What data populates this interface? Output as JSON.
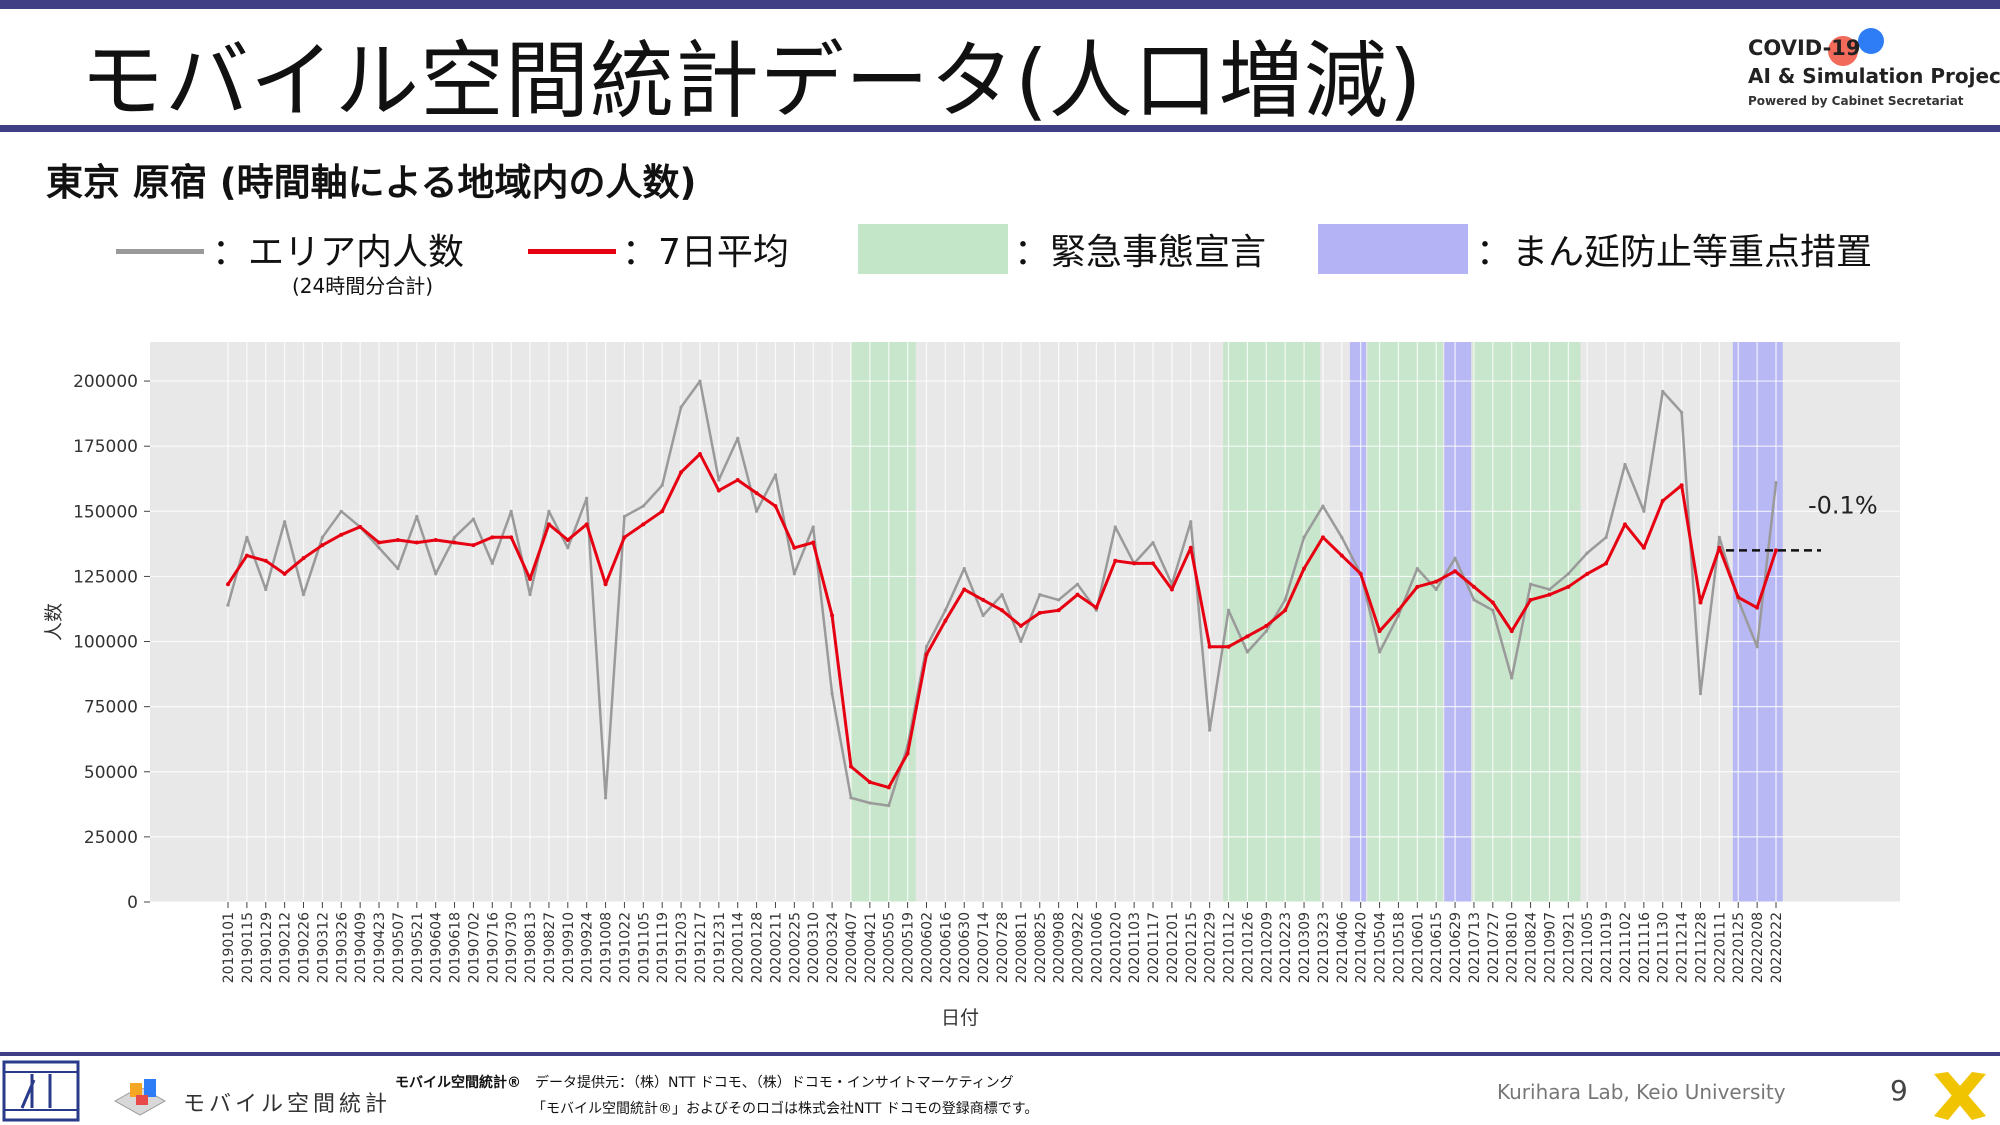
{
  "header": {
    "title": "モバイル空間統計データ(人口増減)",
    "logo_line1": "COVID-19",
    "logo_line2": "AI & Simulation Project",
    "logo_line3": "Powered by Cabinet Secretariat"
  },
  "subtitle": "東京 原宿 (時間軸による地域内の人数)",
  "legend": {
    "raw": "：エリア内人数",
    "raw_note": "(24時間分合計)",
    "avg": "：7日平均",
    "emergency": "：緊急事態宣言",
    "semi": "：まん延防止等重点措置"
  },
  "colors": {
    "raw": "#9a9a9a",
    "avg": "#e60012",
    "emergency": "#c4e6c8",
    "semi": "#b3b3f5",
    "plot_bg": "#e8e8e8"
  },
  "chart_data": {
    "type": "line",
    "xlabel": "日付",
    "ylabel": "人数",
    "ylim": [
      0,
      215000
    ],
    "yticks": [
      "0",
      "25000",
      "50000",
      "75000",
      "100000",
      "125000",
      "150000",
      "175000",
      "200000"
    ],
    "annotation": "-0.1%",
    "x_tick_labels": [
      "20190101",
      "20190115",
      "20190129",
      "20190212",
      "20190226",
      "20190312",
      "20190326",
      "20190409",
      "20190423",
      "20190507",
      "20190521",
      "20190604",
      "20190618",
      "20190702",
      "20190716",
      "20190730",
      "20190813",
      "20190827",
      "20190910",
      "20190924",
      "20191008",
      "20191022",
      "20191105",
      "20191119",
      "20191203",
      "20191217",
      "20191231",
      "20200114",
      "20200128",
      "20200211",
      "20200225",
      "20200310",
      "20200324",
      "20200407",
      "20200421",
      "20200505",
      "20200519",
      "20200602",
      "20200616",
      "20200630",
      "20200714",
      "20200728",
      "20200811",
      "20200825",
      "20200908",
      "20200922",
      "20201006",
      "20201020",
      "20201103",
      "20201117",
      "20201201",
      "20201215",
      "20201229",
      "20210112",
      "20210126",
      "20210209",
      "20210223",
      "20210309",
      "20210323",
      "20210406",
      "20210420",
      "20210504",
      "20210518",
      "20210601",
      "20210615",
      "20210629",
      "20210713",
      "20210727",
      "20210810",
      "20210824",
      "20210907",
      "20210921",
      "20211005",
      "20211019",
      "20211102",
      "20211116",
      "20211130",
      "20211214",
      "20211228",
      "20220111",
      "20220125",
      "20220208",
      "20220222"
    ],
    "shaded_periods": [
      {
        "type": "emergency",
        "start": "20200407",
        "end": "20200525"
      },
      {
        "type": "emergency",
        "start": "20210108",
        "end": "20210321"
      },
      {
        "type": "semi",
        "start": "20210412",
        "end": "20210424"
      },
      {
        "type": "emergency",
        "start": "20210425",
        "end": "20210620"
      },
      {
        "type": "semi",
        "start": "20210621",
        "end": "20210711"
      },
      {
        "type": "emergency",
        "start": "20210712",
        "end": "20210930"
      },
      {
        "type": "semi",
        "start": "20220121",
        "end": "20220227"
      }
    ],
    "series": [
      {
        "name": "エリア内人数",
        "x": [
          "20190101",
          "20190115",
          "20190129",
          "20190212",
          "20190226",
          "20190312",
          "20190326",
          "20190409",
          "20190423",
          "20190507",
          "20190521",
          "20190604",
          "20190618",
          "20190702",
          "20190716",
          "20190730",
          "20190813",
          "20190827",
          "20190910",
          "20190924",
          "20191008",
          "20191022",
          "20191105",
          "20191119",
          "20191203",
          "20191217",
          "20191231",
          "20200114",
          "20200128",
          "20200211",
          "20200225",
          "20200310",
          "20200324",
          "20200407",
          "20200421",
          "20200505",
          "20200519",
          "20200602",
          "20200616",
          "20200630",
          "20200714",
          "20200728",
          "20200811",
          "20200825",
          "20200908",
          "20200922",
          "20201006",
          "20201020",
          "20201103",
          "20201117",
          "20201201",
          "20201215",
          "20201229",
          "20210112",
          "20210126",
          "20210209",
          "20210223",
          "20210309",
          "20210323",
          "20210406",
          "20210420",
          "20210504",
          "20210518",
          "20210601",
          "20210615",
          "20210629",
          "20210713",
          "20210727",
          "20210810",
          "20210824",
          "20210907",
          "20210921",
          "20211005",
          "20211019",
          "20211102",
          "20211116",
          "20211130",
          "20211214",
          "20211228",
          "20220111",
          "20220125",
          "20220208",
          "20220222"
        ],
        "values": [
          114000,
          140000,
          120000,
          146000,
          118000,
          140000,
          150000,
          144000,
          136000,
          128000,
          148000,
          126000,
          140000,
          147000,
          130000,
          150000,
          118000,
          150000,
          136000,
          155000,
          40000,
          148000,
          152000,
          160000,
          190000,
          200000,
          162000,
          178000,
          150000,
          164000,
          126000,
          144000,
          80000,
          40000,
          38000,
          37000,
          60000,
          98000,
          112000,
          128000,
          110000,
          118000,
          100000,
          118000,
          116000,
          122000,
          112000,
          144000,
          130000,
          138000,
          122000,
          146000,
          66000,
          112000,
          96000,
          104000,
          116000,
          140000,
          152000,
          140000,
          126000,
          96000,
          110000,
          128000,
          120000,
          132000,
          116000,
          112000,
          86000,
          122000,
          120000,
          126000,
          134000,
          140000,
          168000,
          150000,
          196000,
          188000,
          80000,
          140000,
          116000,
          98000,
          161000
        ]
      },
      {
        "name": "7日平均",
        "x": [
          "20190101",
          "20190115",
          "20190129",
          "20190212",
          "20190226",
          "20190312",
          "20190326",
          "20190409",
          "20190423",
          "20190507",
          "20190521",
          "20190604",
          "20190618",
          "20190702",
          "20190716",
          "20190730",
          "20190813",
          "20190827",
          "20190910",
          "20190924",
          "20191008",
          "20191022",
          "20191105",
          "20191119",
          "20191203",
          "20191217",
          "20191231",
          "20200114",
          "20200128",
          "20200211",
          "20200225",
          "20200310",
          "20200324",
          "20200407",
          "20200421",
          "20200505",
          "20200519",
          "20200602",
          "20200616",
          "20200630",
          "20200714",
          "20200728",
          "20200811",
          "20200825",
          "20200908",
          "20200922",
          "20201006",
          "20201020",
          "20201103",
          "20201117",
          "20201201",
          "20201215",
          "20201229",
          "20210112",
          "20210126",
          "20210209",
          "20210223",
          "20210309",
          "20210323",
          "20210406",
          "20210420",
          "20210504",
          "20210518",
          "20210601",
          "20210615",
          "20210629",
          "20210713",
          "20210727",
          "20210810",
          "20210824",
          "20210907",
          "20210921",
          "20211005",
          "20211019",
          "20211102",
          "20211116",
          "20211130",
          "20211214",
          "20211228",
          "20220111",
          "20220125",
          "20220208",
          "20220222"
        ],
        "values": [
          122000,
          133000,
          131000,
          126000,
          132000,
          137000,
          141000,
          144000,
          138000,
          139000,
          138000,
          139000,
          138000,
          137000,
          140000,
          140000,
          124000,
          145000,
          139000,
          145000,
          122000,
          140000,
          145000,
          150000,
          165000,
          172000,
          158000,
          162000,
          157000,
          152000,
          136000,
          138000,
          110000,
          52000,
          46000,
          44000,
          57000,
          95000,
          108000,
          120000,
          116000,
          112000,
          106000,
          111000,
          112000,
          118000,
          113000,
          131000,
          130000,
          130000,
          120000,
          136000,
          98000,
          98000,
          102000,
          106000,
          112000,
          128000,
          140000,
          133000,
          126000,
          104000,
          112000,
          121000,
          123000,
          127000,
          121000,
          115000,
          104000,
          116000,
          118000,
          121000,
          126000,
          130000,
          145000,
          136000,
          154000,
          160000,
          115000,
          136000,
          117000,
          113000,
          135000
        ]
      }
    ]
  },
  "footer": {
    "brand": "モバイル空間統計®",
    "provider": "データ提供元：（株）NTT ドコモ、（株）ドコモ・インサイトマーケティング",
    "trademark": "「モバイル空間統計®」およびそのロゴは株式会社NTT ドコモの登録商標です。",
    "logo_text": "モバイル空間統計",
    "lab": "Kurihara Lab, Keio University",
    "page": "9"
  }
}
